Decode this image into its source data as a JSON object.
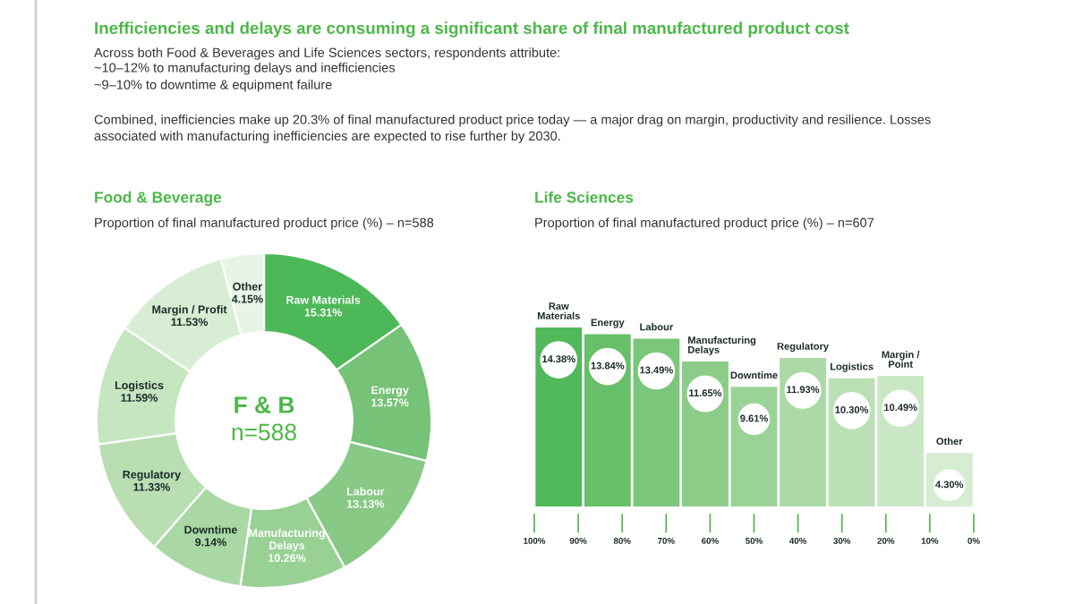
{
  "chart_data": [
    {
      "type": "other",
      "title": "Inefficiencies and delays are consuming a significant share of final manufactured product cost",
      "subtitle": "Across both Food & Beverages and Life Sciences sectors, respondents attribute:",
      "annotations": [
        "~10–12% to manufacturing delays and inefficiencies",
        "~9–10% to downtime & equipment failure",
        "Combined, inefficiencies make up 20.3% of final manufactured product price today — a major drag on margin, productivity and resilience. Losses associated with manufacturing inefficiencies are expected to rise further by 2030."
      ]
    },
    {
      "type": "donut",
      "title": "Food & Beverage",
      "subtitle": "Proportion of final manufactured product price (%) – n=588",
      "categories": [
        "Raw Materials",
        "Energy",
        "Labour",
        "Manufacturing Delays",
        "Downtime",
        "Regulatory",
        "Logistics",
        "Margin / Profit",
        "Other"
      ],
      "values": [
        15.31,
        13.57,
        13.13,
        10.26,
        9.14,
        11.33,
        11.59,
        11.53,
        4.15
      ],
      "value_labels": [
        "15.31%",
        "13.57%",
        "13.13%",
        "10.26%",
        "9.14%",
        "11.33%",
        "11.59%",
        "11.53%",
        "4.15%"
      ],
      "colors": [
        "#4db857",
        "#76c277",
        "#88c985",
        "#99d195",
        "#a9d8a4",
        "#b8deb2",
        "#c6e5c1",
        "#d8eed4",
        "#e8f4e5"
      ],
      "annotations": [
        "F & B",
        "n=588"
      ]
    },
    {
      "type": "bar",
      "title": "Life Sciences",
      "subtitle": "Proportion of final manufactured product price (%) – n=607",
      "categories": [
        "Raw Materials",
        "Energy",
        "Labour",
        "Manufacturing Delays",
        "Downtime",
        "Regulatory",
        "Logistics",
        "Margin / Point",
        "Other"
      ],
      "values": [
        14.38,
        13.84,
        13.49,
        11.65,
        9.61,
        11.93,
        10.3,
        10.49,
        4.3
      ],
      "value_labels": [
        "14.38%",
        "13.84%",
        "13.49%",
        "11.65%",
        "9.61%",
        "11.93%",
        "10.30%",
        "10.49%",
        "4.30%"
      ],
      "colors": [
        "#52b95a",
        "#68bf6a",
        "#7ac67a",
        "#8ccc89",
        "#9bd397",
        "#acdaa6",
        "#bbe0b5",
        "#c9e7c4",
        "#d6edd2"
      ],
      "x2lim": [
        100,
        0
      ],
      "x2ticks": [
        {
          "value": 100,
          "label": "100%"
        },
        {
          "value": 90,
          "label": "90%"
        },
        {
          "value": 80,
          "label": "80%"
        },
        {
          "value": 70,
          "label": "70%"
        },
        {
          "value": 60,
          "label": "60%"
        },
        {
          "value": 50,
          "label": "50%"
        },
        {
          "value": 40,
          "label": "40%"
        },
        {
          "value": 30,
          "label": "30%"
        },
        {
          "value": 20,
          "label": "20%"
        },
        {
          "value": 10,
          "label": "10%"
        },
        {
          "value": 0,
          "label": "0%"
        }
      ]
    }
  ]
}
